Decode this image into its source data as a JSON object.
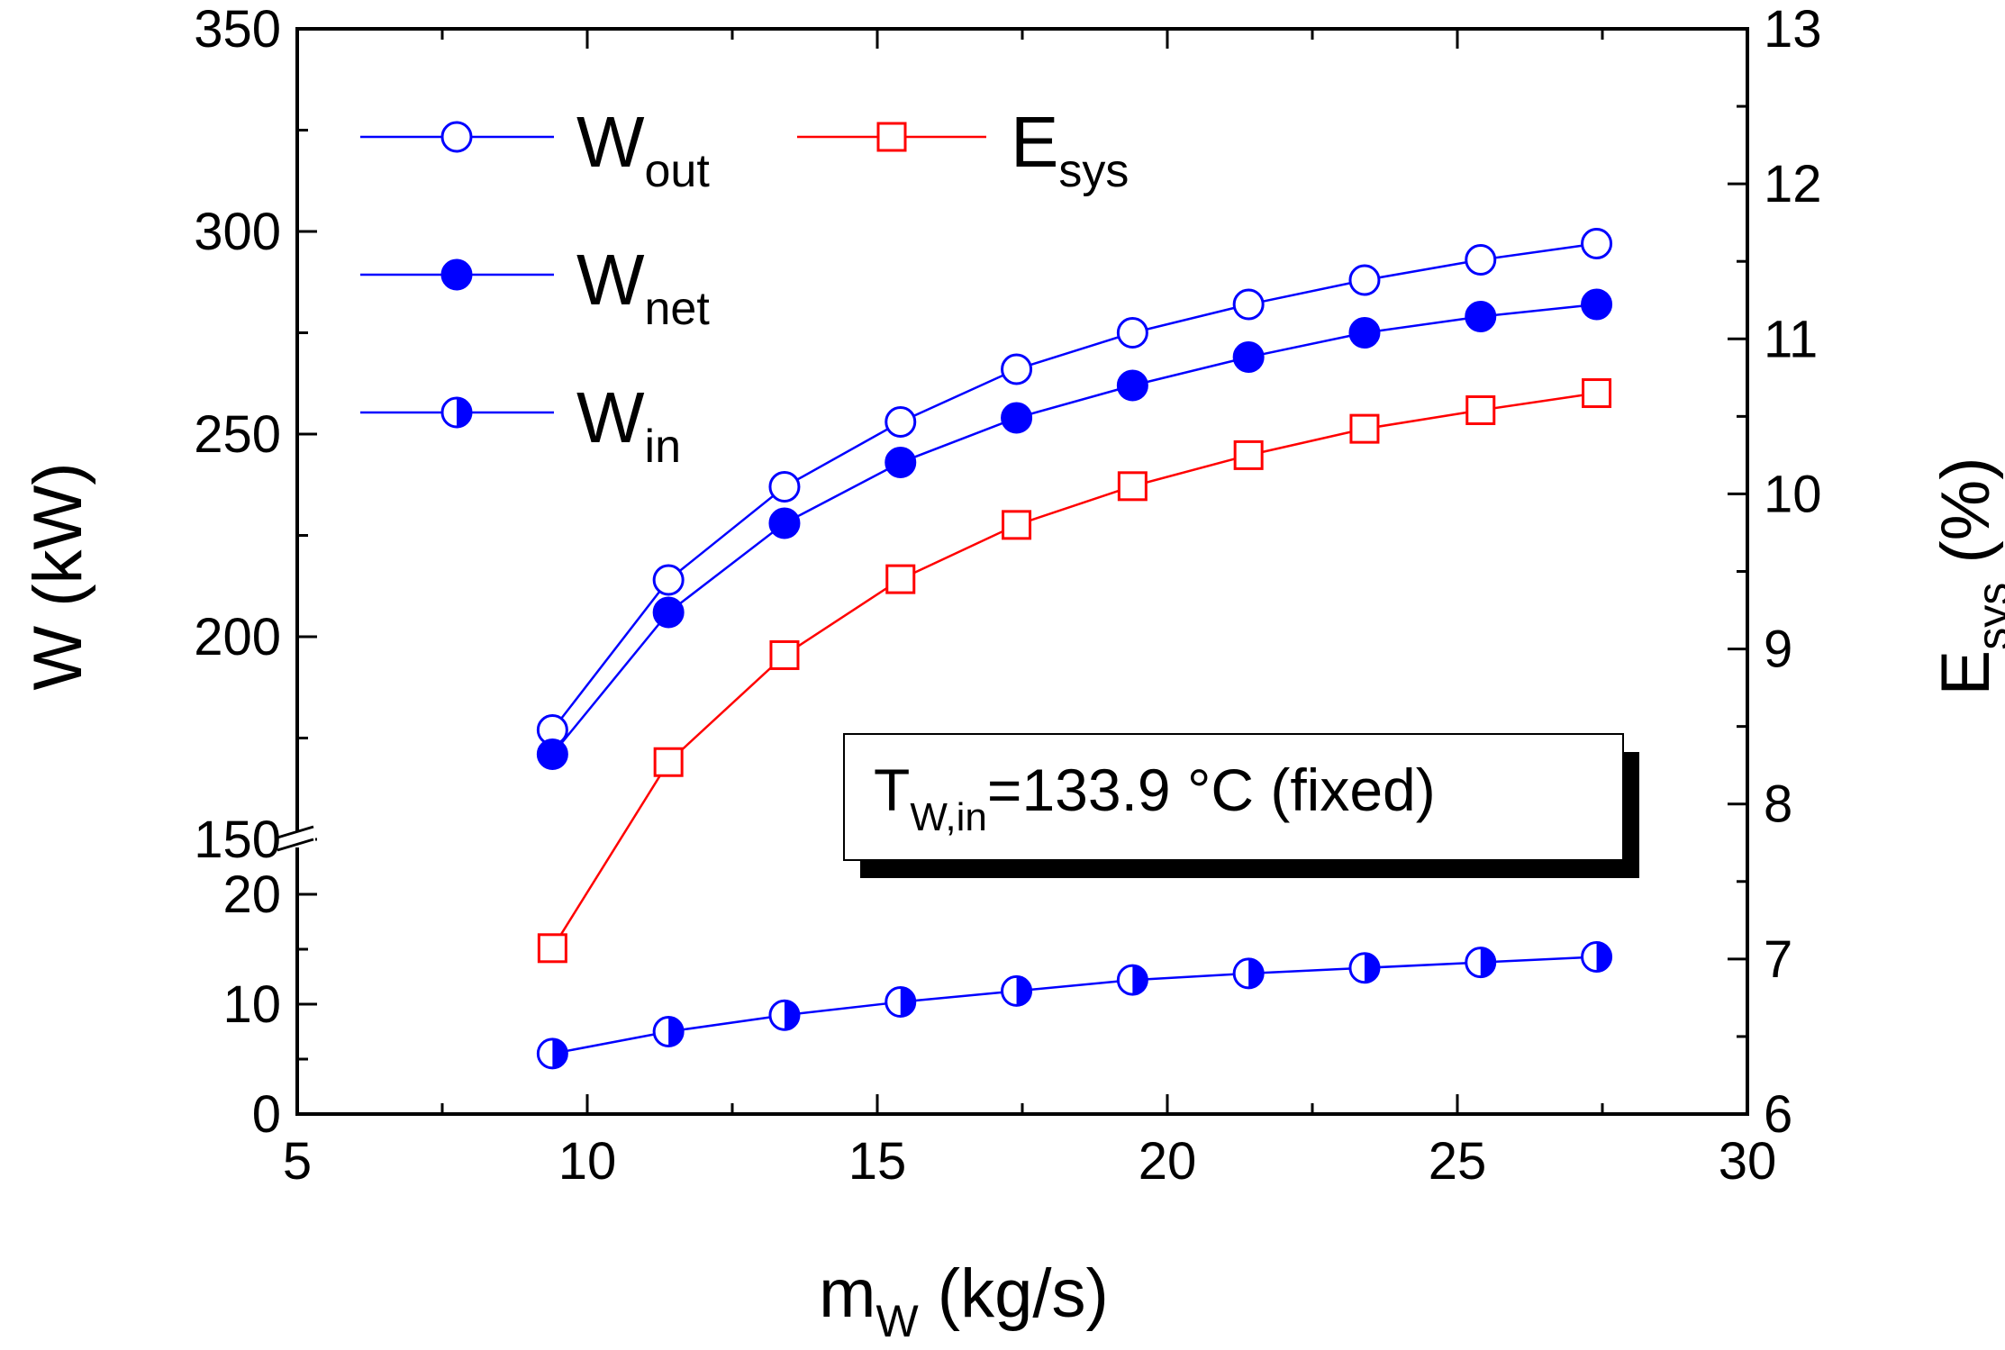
{
  "chart_data": {
    "type": "line",
    "x": [
      9.4,
      11.4,
      13.4,
      15.4,
      17.4,
      19.4,
      21.4,
      23.4,
      25.4,
      27.4
    ],
    "xlim": [
      5,
      30
    ],
    "xticks": [
      "5",
      "10",
      "15",
      "20",
      "25",
      "30"
    ],
    "xlabel": {
      "main": "m",
      "sub": "W",
      "tail": " (kg/s)"
    },
    "ylabel_left": "W (kW)",
    "ylabel_right": {
      "main": "E",
      "sub": "sys",
      "tail": " (%)"
    },
    "left_axis_upper": {
      "range": [
        150,
        350
      ],
      "ticks": [
        "150",
        "200",
        "250",
        "300",
        "350"
      ]
    },
    "left_axis_lower": {
      "range": [
        0,
        25
      ],
      "ticks": [
        "0",
        "10",
        "20"
      ]
    },
    "right_axis": {
      "range": [
        6,
        13
      ],
      "ticks": [
        "6",
        "7",
        "8",
        "9",
        "10",
        "11",
        "12",
        "13"
      ]
    },
    "series": [
      {
        "key": "wout",
        "name": "W",
        "sub": "out",
        "axis": "left",
        "marker": "open-circle",
        "color": "#0000ff",
        "values": [
          177,
          214,
          237,
          253,
          266,
          275,
          282,
          288,
          293,
          297
        ]
      },
      {
        "key": "wnet",
        "name": "W",
        "sub": "net",
        "axis": "left",
        "marker": "filled-circle",
        "color": "#0000ff",
        "values": [
          171,
          206,
          228,
          243,
          254,
          262,
          269,
          275,
          279,
          282
        ]
      },
      {
        "key": "win",
        "name": "W",
        "sub": "in",
        "axis": "left",
        "marker": "half-circle",
        "color": "#0000ff",
        "values": [
          5.5,
          7.5,
          9,
          10.2,
          11.2,
          12.2,
          12.8,
          13.3,
          13.8,
          14.3
        ]
      },
      {
        "key": "esys",
        "name": "E",
        "sub": "sys",
        "axis": "right",
        "marker": "open-square",
        "color": "#ff0000",
        "values": [
          7.07,
          8.27,
          8.96,
          9.45,
          9.8,
          10.05,
          10.25,
          10.42,
          10.54,
          10.65
        ]
      }
    ],
    "annotation": {
      "main": "T",
      "sub": "W,in",
      "tail": "=133.9 °C (fixed)"
    },
    "legend_position": "top-left"
  }
}
